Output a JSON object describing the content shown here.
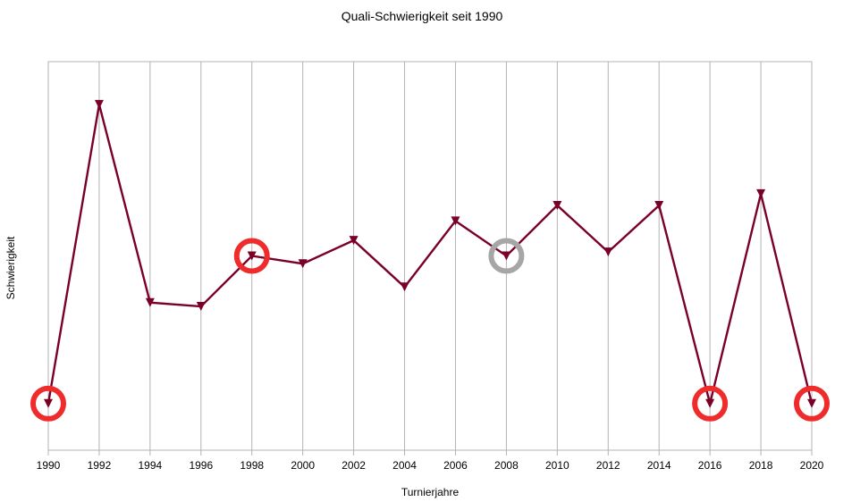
{
  "chart_data": {
    "type": "line",
    "title": "Quali-Schwierigkeit seit 1990",
    "xlabel": "Turnierjahre",
    "ylabel": "Schwierigkeit",
    "x": [
      "1990",
      "1992",
      "1994",
      "1996",
      "1998",
      "2000",
      "2002",
      "2004",
      "2006",
      "2008",
      "2010",
      "2012",
      "2014",
      "2016",
      "2018",
      "2020"
    ],
    "series": [
      {
        "values": [
          1.2,
          8.9,
          3.8,
          3.7,
          5.0,
          4.8,
          5.4,
          4.2,
          5.9,
          5.0,
          6.3,
          5.1,
          6.3,
          1.2,
          6.6,
          1.2
        ],
        "color": "#7b0028",
        "marker": "triangle-down"
      }
    ],
    "ylim": [
      0,
      10
    ],
    "y_ticks_shown": false,
    "grid": {
      "vertical": true,
      "horizontal": false,
      "color": "#b3b3b3"
    },
    "highlights": [
      {
        "x": "1990",
        "color": "#ef2b2b"
      },
      {
        "x": "1998",
        "color": "#ef2b2b"
      },
      {
        "x": "2008",
        "color": "#a6a6a6"
      },
      {
        "x": "2016",
        "color": "#ef2b2b"
      },
      {
        "x": "2020",
        "color": "#ef2b2b"
      }
    ]
  }
}
